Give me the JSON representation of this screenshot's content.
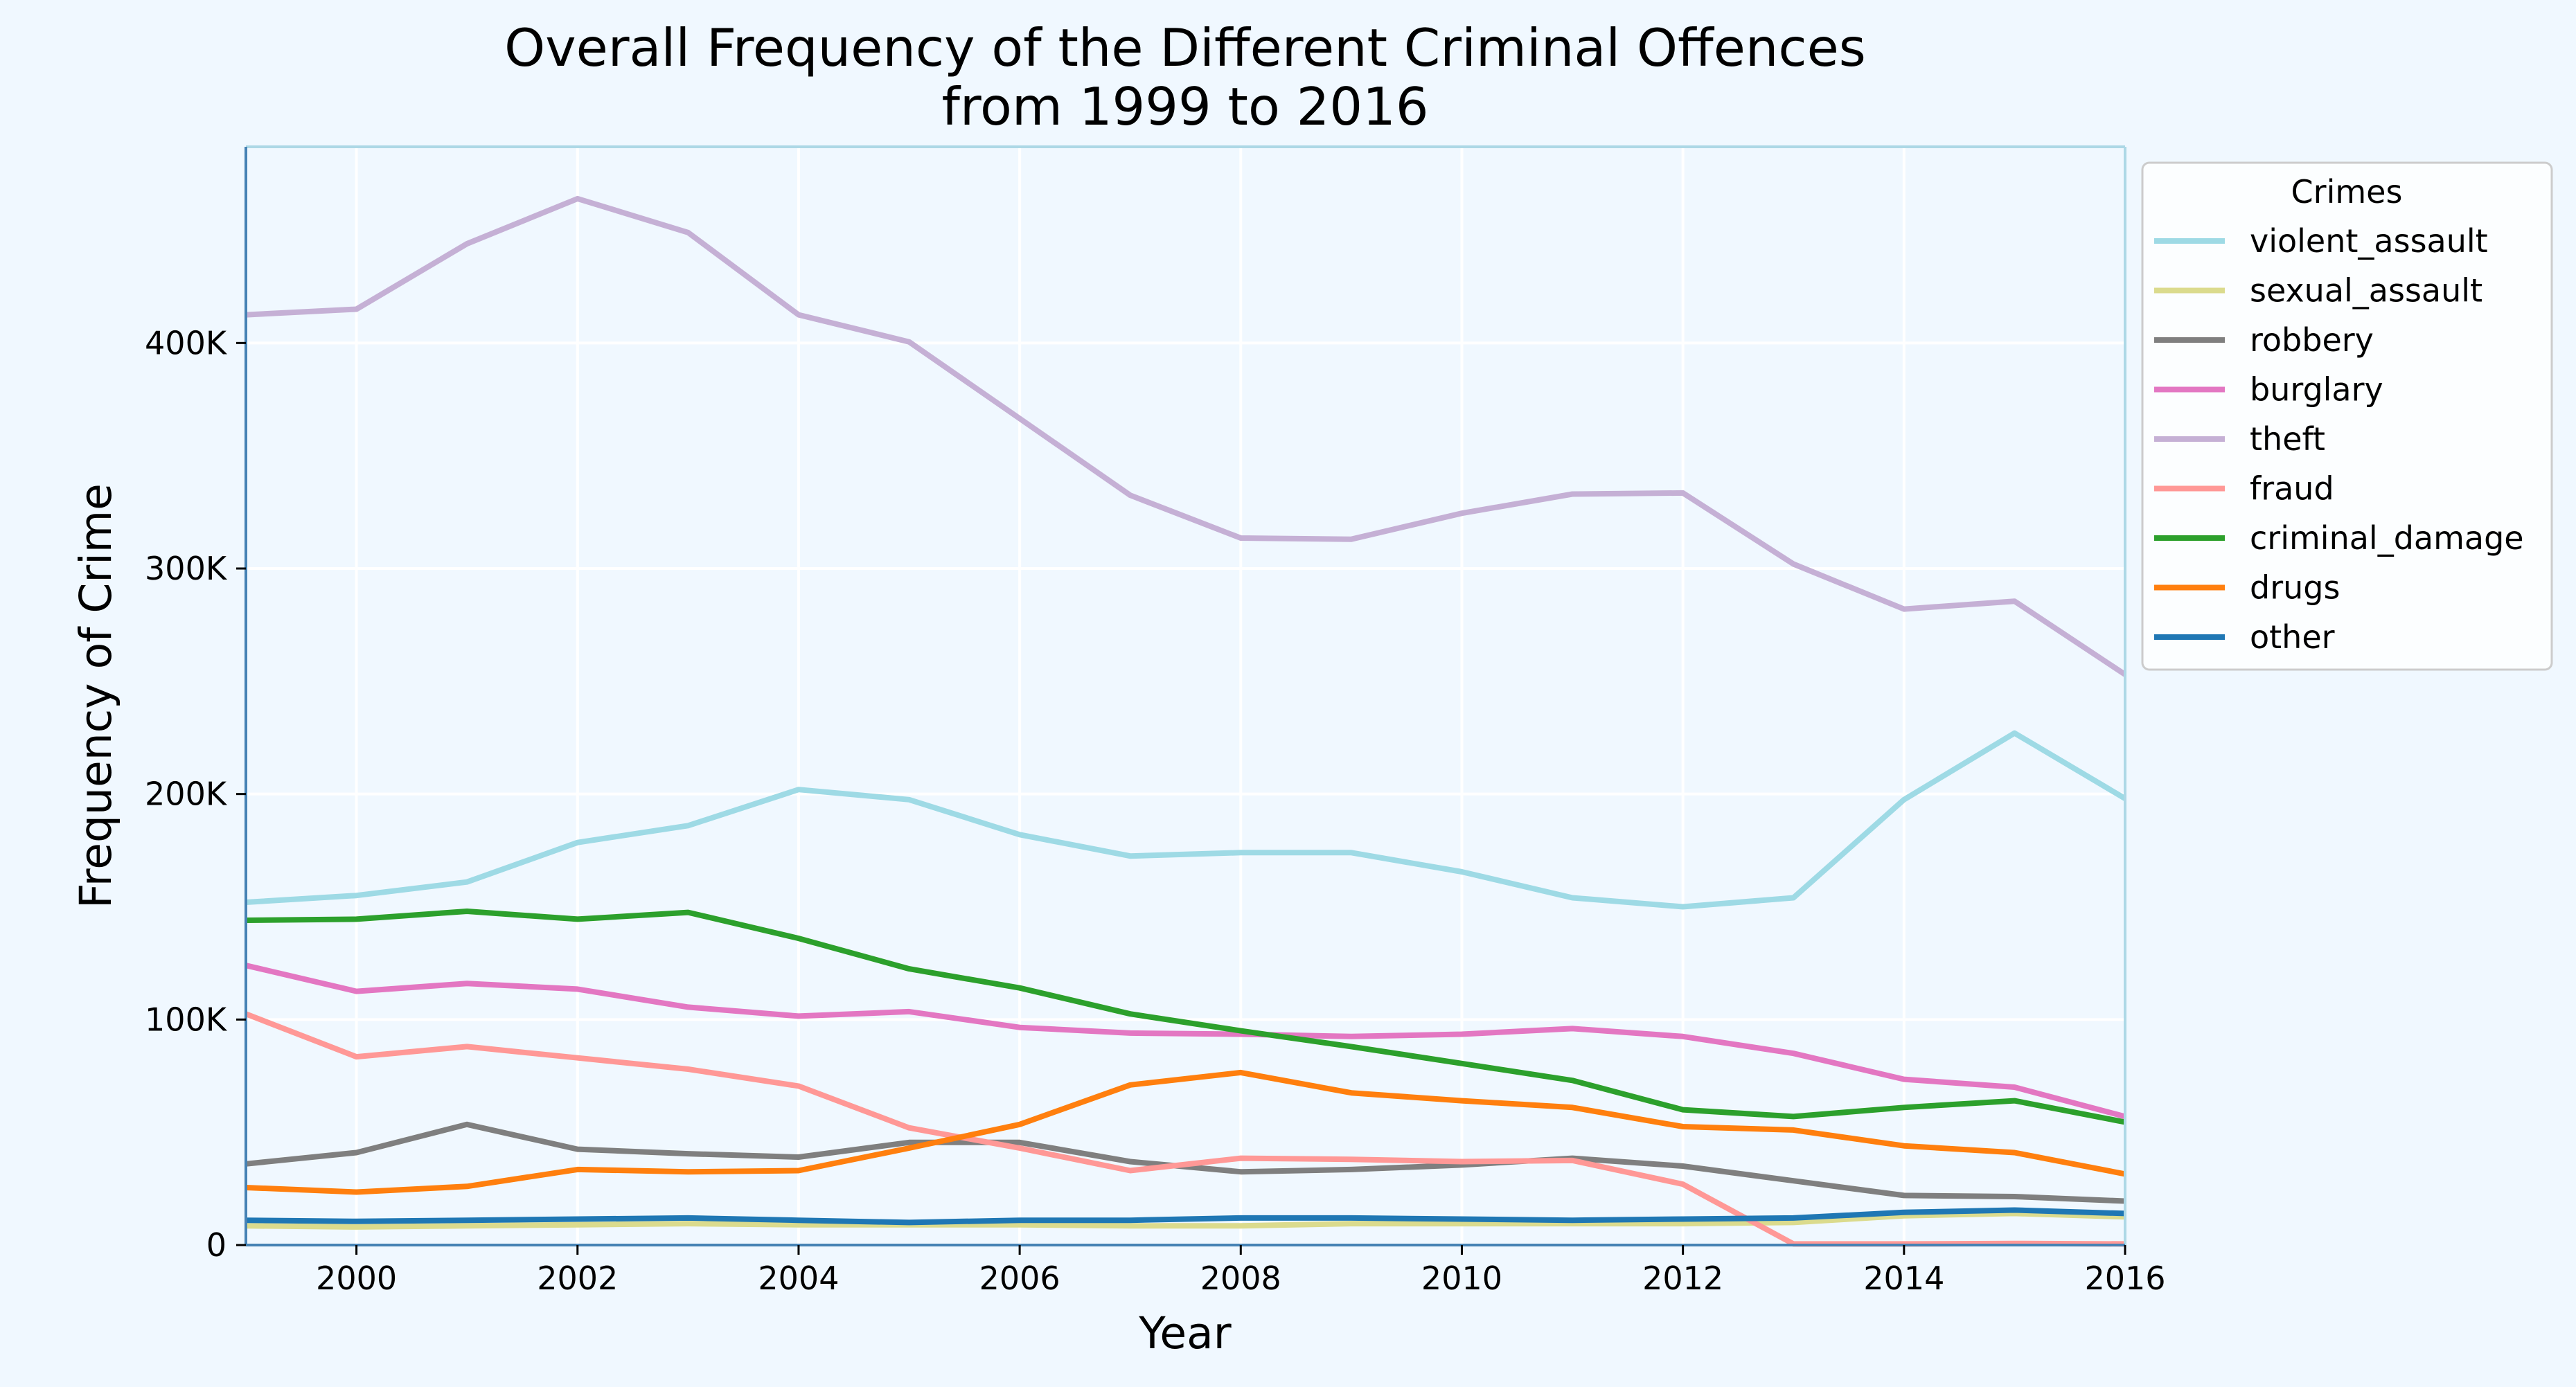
{
  "chart_data": {
    "type": "line",
    "title_line1": "Overall Frequency of the Different Criminal Offences",
    "title_line2": "from 1999 to 2016",
    "xlabel": "Year",
    "ylabel": "Frequency of Crime",
    "xlim": [
      1999,
      2016
    ],
    "ylim": [
      0,
      487000
    ],
    "x_ticks": [
      2000,
      2002,
      2004,
      2006,
      2008,
      2010,
      2012,
      2014,
      2016
    ],
    "y_ticks": [
      {
        "value": 0,
        "label": "0"
      },
      {
        "value": 100000,
        "label": "100K"
      },
      {
        "value": 200000,
        "label": "200K"
      },
      {
        "value": 300000,
        "label": "300K"
      },
      {
        "value": 400000,
        "label": "400K"
      }
    ],
    "grid": true,
    "legend_title": "Crimes",
    "legend_position": "outside-upper-right",
    "x": [
      1999,
      2000,
      2001,
      2002,
      2003,
      2004,
      2005,
      2006,
      2007,
      2008,
      2009,
      2010,
      2011,
      2012,
      2013,
      2014,
      2015,
      2016
    ],
    "series": [
      {
        "name": "violent_assault",
        "color": "#9edae5",
        "values": [
          152000,
          155000,
          161000,
          178500,
          186000,
          202000,
          197500,
          182000,
          172500,
          174000,
          174000,
          165500,
          154000,
          150000,
          154000,
          197500,
          227000,
          198000
        ]
      },
      {
        "name": "sexual_assault",
        "color": "#dbdb8d",
        "values": [
          8500,
          8000,
          8500,
          9000,
          9500,
          9000,
          9000,
          9000,
          8500,
          8500,
          9500,
          9500,
          9500,
          9500,
          10000,
          13000,
          14000,
          12500
        ]
      },
      {
        "name": "robbery",
        "color": "#7f7f7f",
        "values": [
          36000,
          41000,
          53500,
          42500,
          40500,
          39000,
          45500,
          45500,
          37000,
          32500,
          33500,
          35500,
          38500,
          35000,
          28500,
          22000,
          21500,
          19500
        ]
      },
      {
        "name": "burglary",
        "color": "#e377c2",
        "values": [
          124000,
          112500,
          116000,
          113500,
          105500,
          101500,
          103500,
          96500,
          94000,
          93500,
          92500,
          93500,
          96000,
          92500,
          85000,
          73500,
          70000,
          57000
        ]
      },
      {
        "name": "theft",
        "color": "#c5b0d5",
        "values": [
          412500,
          415000,
          444000,
          464000,
          449000,
          412500,
          400500,
          366500,
          332500,
          313500,
          313000,
          324500,
          333000,
          333500,
          302000,
          282000,
          285500,
          253000
        ]
      },
      {
        "name": "fraud",
        "color": "#ff9896",
        "values": [
          102500,
          83500,
          88000,
          83000,
          78000,
          70500,
          52000,
          43000,
          33000,
          38500,
          38000,
          37000,
          37500,
          27000,
          500,
          500,
          700,
          500
        ]
      },
      {
        "name": "criminal_damage",
        "color": "#2ca02c",
        "values": [
          144000,
          144500,
          148000,
          144500,
          147500,
          136000,
          122500,
          114000,
          102500,
          95000,
          88000,
          80500,
          73000,
          60000,
          57000,
          61000,
          64000,
          54500
        ]
      },
      {
        "name": "drugs",
        "color": "#ff7f0e",
        "values": [
          25500,
          23500,
          26000,
          33500,
          32500,
          33000,
          43000,
          53500,
          71000,
          76500,
          67500,
          64000,
          61000,
          52500,
          51000,
          44000,
          41000,
          31500
        ]
      },
      {
        "name": "other",
        "color": "#1f77b4",
        "values": [
          11000,
          10500,
          11000,
          11500,
          12000,
          11000,
          10000,
          11000,
          11000,
          12000,
          12000,
          11500,
          11000,
          11500,
          12000,
          14500,
          15500,
          14000
        ]
      }
    ]
  }
}
